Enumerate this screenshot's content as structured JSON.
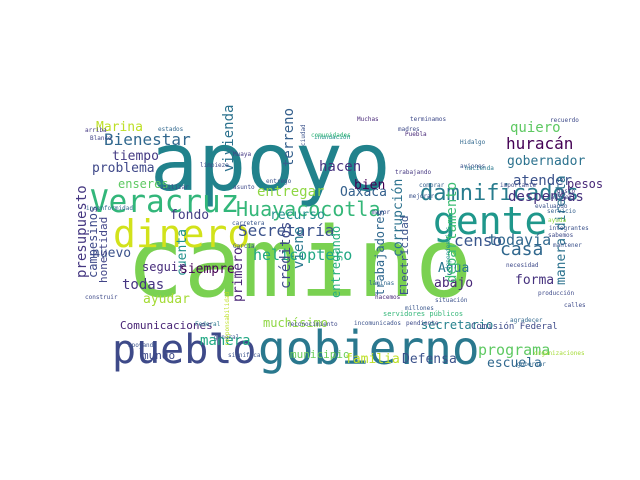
{
  "words": [
    {
      "text": "apoyo",
      "color": "#21828c"
    },
    {
      "text": "camino",
      "color": "#7ad151"
    },
    {
      "text": "gente",
      "color": "#1f978b"
    },
    {
      "text": "dinero",
      "color": "#d2e21b"
    },
    {
      "text": "pueblo",
      "color": "#3e4a89"
    },
    {
      "text": "gobierno",
      "color": "#2a788e"
    },
    {
      "text": "Veracruz",
      "color": "#32b67a"
    },
    {
      "text": "damnificados",
      "color": "#287c8e"
    },
    {
      "text": "Huayacocotla",
      "color": "#35b779"
    },
    {
      "text": "Secretaría",
      "color": "#3b528b"
    },
    {
      "text": "helicoptero",
      "color": "#22a884"
    },
    {
      "text": "Bienestar",
      "color": "#31688e"
    },
    {
      "text": "Marina",
      "color": "#bddf26"
    },
    {
      "text": "quiero",
      "color": "#5ec962"
    },
    {
      "text": "huracán",
      "color": "#440154"
    },
    {
      "text": "gobernador",
      "color": "#2c728e"
    },
    {
      "text": "atender",
      "color": "#3b528b"
    },
    {
      "text": "despensas",
      "color": "#46327e"
    },
    {
      "text": "pesos",
      "color": "#482878"
    },
    {
      "text": "tiempo",
      "color": "#443a83"
    },
    {
      "text": "hacen",
      "color": "#46337f"
    },
    {
      "text": "problema",
      "color": "#3f4889"
    },
    {
      "text": "enseres",
      "color": "#5ec962"
    },
    {
      "text": "persona",
      "color": "#3b528b"
    },
    {
      "text": "nuevo",
      "color": "#3b528b"
    },
    {
      "text": "entregar",
      "color": "#8fd744"
    },
    {
      "text": "Oaxaca",
      "color": "#35608d"
    },
    {
      "text": "bien",
      "color": "#440154"
    },
    {
      "text": "casa",
      "color": "#31688e"
    },
    {
      "text": "censo",
      "color": "#39568c"
    },
    {
      "text": "todavía",
      "color": "#31688e"
    },
    {
      "text": "fondo",
      "color": "#433e85"
    },
    {
      "text": "recurso",
      "color": "#21918c"
    },
    {
      "text": "vivienda",
      "color": "#2c728e"
    },
    {
      "text": "terreno",
      "color": "#35608d"
    },
    {
      "text": "cuenta",
      "color": "#21918c"
    },
    {
      "text": "siempre",
      "color": "#440154"
    },
    {
      "text": "seguir",
      "color": "#472d7b"
    },
    {
      "text": "todas",
      "color": "#453581"
    },
    {
      "text": "ayudar",
      "color": "#a5db36"
    },
    {
      "text": "créditos",
      "color": "#3e4a89"
    },
    {
      "text": "primero",
      "color": "#482475"
    },
    {
      "text": "viene",
      "color": "#2a788e"
    },
    {
      "text": "muchísimo",
      "color": "#8fd744"
    },
    {
      "text": "trabajadores",
      "color": "#31688e"
    },
    {
      "text": "entregando",
      "color": "#29af7f"
    },
    {
      "text": "corrupción",
      "color": "#2c728e"
    },
    {
      "text": "Agua",
      "color": "#2a788e"
    },
    {
      "text": "abajo",
      "color": "#482878"
    },
    {
      "text": "Electricidad",
      "color": "#3b528b"
    },
    {
      "text": "departamento",
      "color": "#3dbc74"
    },
    {
      "text": "forma",
      "color": "#46327e"
    },
    {
      "text": "manera directa",
      "color": "#2c728e"
    },
    {
      "text": "programa",
      "color": "#5ec962"
    },
    {
      "text": "escuela",
      "color": "#31688e"
    },
    {
      "text": "secretario",
      "color": "#26828e"
    },
    {
      "text": "Comisión Federal",
      "color": "#3e4a89"
    },
    {
      "text": "presupuesto",
      "color": "#453781"
    },
    {
      "text": "campesinos",
      "color": "#3e4a89"
    },
    {
      "text": "honestidad",
      "color": "#414487"
    },
    {
      "text": "Comunicaciones",
      "color": "#482475"
    },
    {
      "text": "mundo",
      "color": "#3e4a89"
    },
    {
      "text": "manera",
      "color": "#22a884"
    },
    {
      "text": "municipio",
      "color": "#6ccd5a"
    },
    {
      "text": "familia",
      "color": "#bddf26"
    },
    {
      "text": "Defensa",
      "color": "#3b528b"
    },
    {
      "text": "arriba",
      "color": "#443983"
    },
    {
      "text": "Blanco",
      "color": "#414487"
    },
    {
      "text": "Hidalgo",
      "color": "#31688e"
    },
    {
      "text": "madres",
      "color": "#3e4a89"
    },
    {
      "text": "aviones",
      "color": "#3b528b"
    },
    {
      "text": "hacienda",
      "color": "#2a788e"
    },
    {
      "text": "importante",
      "color": "#3e4a89"
    },
    {
      "text": "servidores públicos",
      "color": "#35b779"
    },
    {
      "text": "trabajando",
      "color": "#453781"
    },
    {
      "text": "comprar",
      "color": "#35608d"
    },
    {
      "text": "mejorar",
      "color": "#3b528b"
    },
    {
      "text": "Puebla",
      "color": "#482878"
    },
    {
      "text": "inconformidad",
      "color": "#31688e"
    },
    {
      "text": "construir",
      "color": "#3e4a89"
    },
    {
      "text": "Federal",
      "color": "#2a788e"
    },
    {
      "text": "García",
      "color": "#3b528b"
    },
    {
      "text": "general",
      "color": "#39568c"
    },
    {
      "text": "entrego",
      "color": "#3b528b"
    },
    {
      "text": "asunto",
      "color": "#3e4a89"
    },
    {
      "text": "Muaya",
      "color": "#443983"
    },
    {
      "text": "necesidad",
      "color": "#3e4a89"
    },
    {
      "text": "organizaciones",
      "color": "#a5db36"
    },
    {
      "text": "gobernar",
      "color": "#31688e"
    },
    {
      "text": "significa",
      "color": "#3b528b"
    },
    {
      "text": "gasto",
      "color": "#453781"
    },
    {
      "text": "hacemos",
      "color": "#482878"
    },
    {
      "text": "producción",
      "color": "#3e4a89"
    },
    {
      "text": "integrantes",
      "color": "#3b528b"
    },
    {
      "text": "servicio",
      "color": "#35608d"
    },
    {
      "text": "sabemos",
      "color": "#3e4a89"
    },
    {
      "text": "evaluando",
      "color": "#3b528b"
    },
    {
      "text": "agradecer",
      "color": "#31688e"
    },
    {
      "text": "millones",
      "color": "#39568c"
    },
    {
      "text": "pendiente",
      "color": "#3e4a89"
    },
    {
      "text": "apoyando",
      "color": "#3b528b"
    },
    {
      "text": "utilizar",
      "color": "#3e4a89"
    },
    {
      "text": "terminamos",
      "color": "#3e4a89"
    },
    {
      "text": "Muchas",
      "color": "#482878"
    },
    {
      "text": "mayor",
      "color": "#3e4a89"
    },
    {
      "text": "láminas",
      "color": "#31688e"
    },
    {
      "text": "situación",
      "color": "#3b528b"
    },
    {
      "text": "dependencias",
      "color": "#21918c"
    },
    {
      "text": "recuerdo",
      "color": "#3e4a89"
    },
    {
      "text": "inundación",
      "color": "#21918c"
    },
    {
      "text": "estados",
      "color": "#31688e"
    },
    {
      "text": "ciudad",
      "color": "#3b528b"
    },
    {
      "text": "limpieza",
      "color": "#3e4a89"
    },
    {
      "text": "comunidades",
      "color": "#35b779"
    },
    {
      "text": "carretera",
      "color": "#39568c"
    },
    {
      "text": "reconocimiento",
      "color": "#3e4a89"
    },
    {
      "text": "incomunicados",
      "color": "#3b528b"
    },
    {
      "text": "rapidez",
      "color": "#3e4a89"
    },
    {
      "text": "mantener",
      "color": "#3b528b"
    },
    {
      "text": "ayuda",
      "color": "#8fd744"
    },
    {
      "text": "calles",
      "color": "#3e4a89"
    },
    {
      "text": "responsabilidad",
      "color": "#bddf26"
    }
  ]
}
